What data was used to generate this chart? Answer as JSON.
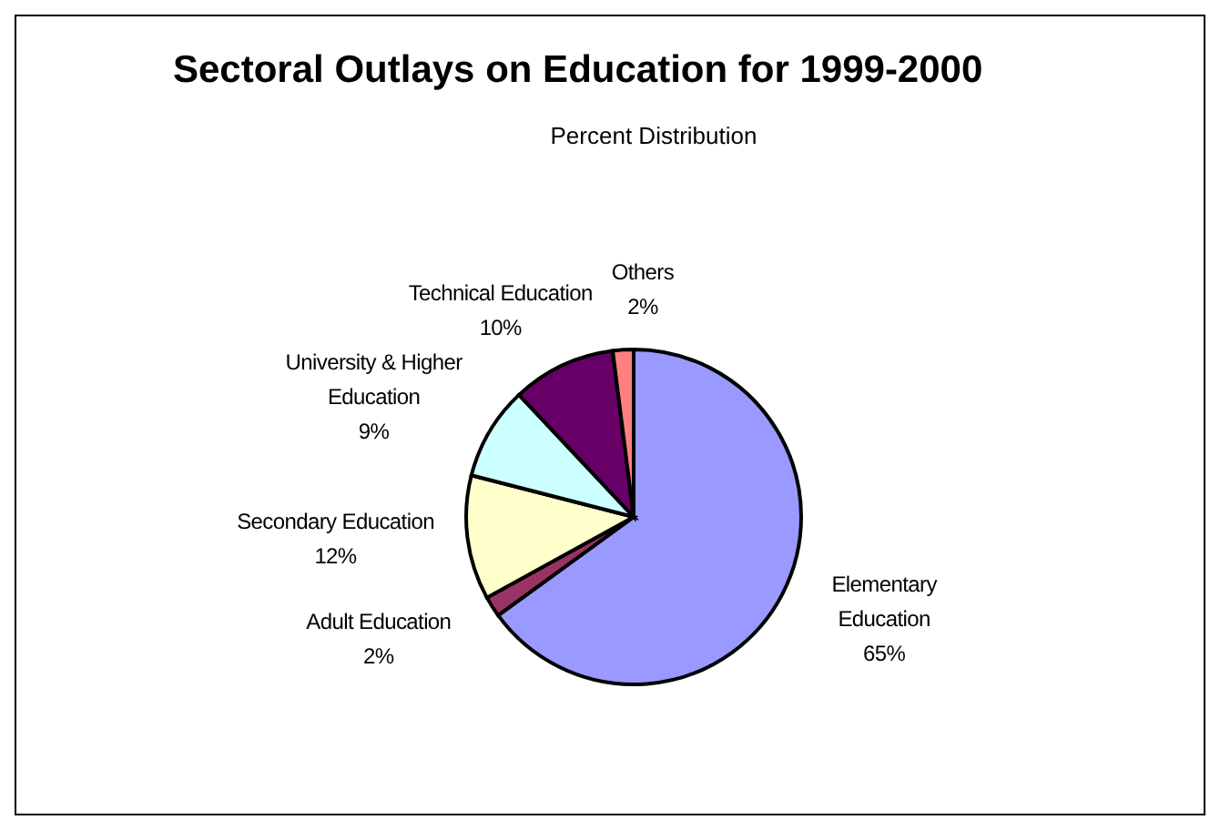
{
  "chart_data": {
    "type": "pie",
    "title": "Sectoral Outlays on Education for 1999-2000",
    "subtitle": "Percent Distribution",
    "categories": [
      "Elementary Education",
      "Adult Education",
      "Secondary Education",
      "University & Higher Education",
      "Technical Education",
      "Others"
    ],
    "values": [
      65,
      2,
      12,
      9,
      10,
      2
    ],
    "value_labels": [
      "65%",
      "2%",
      "12%",
      "9%",
      "10%",
      "2%"
    ],
    "colors": [
      "#9999ff",
      "#993366",
      "#ffffcc",
      "#ccffff",
      "#660066",
      "#ff8080"
    ],
    "legend": false
  }
}
